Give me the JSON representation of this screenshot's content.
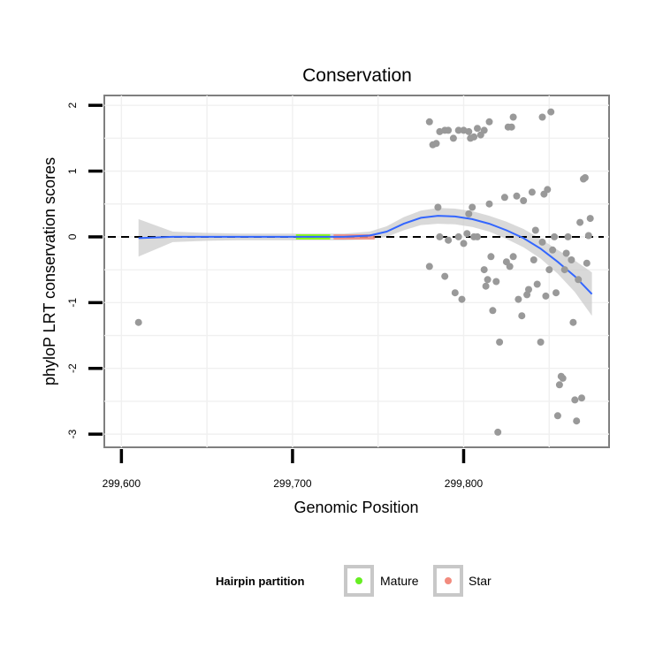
{
  "chart_data": {
    "type": "scatter",
    "title": "Conservation",
    "xlabel": "Genomic Position",
    "ylabel": "phyloP LRT conservation scores",
    "xlim": [
      299590,
      299885
    ],
    "ylim": [
      -3.2,
      2.15
    ],
    "x_ticks": [
      299600,
      299700,
      299800
    ],
    "x_tick_labels": [
      "299,600",
      "299,700",
      "299,800"
    ],
    "y_ticks": [
      2,
      1,
      0,
      -1,
      -2,
      -3
    ],
    "y_tick_labels": [
      "2",
      "1",
      "0",
      "-1",
      "-2",
      "-3"
    ],
    "grid": true,
    "reference_line": {
      "y": 0,
      "style": "dashed"
    },
    "points": [
      {
        "x": 299610,
        "y": -1.3
      },
      {
        "x": 299780,
        "y": 1.75
      },
      {
        "x": 299782,
        "y": 1.4
      },
      {
        "x": 299784,
        "y": 1.42
      },
      {
        "x": 299786,
        "y": 1.6
      },
      {
        "x": 299789,
        "y": 1.62
      },
      {
        "x": 299791,
        "y": 1.62
      },
      {
        "x": 299794,
        "y": 1.5
      },
      {
        "x": 299797,
        "y": 1.62
      },
      {
        "x": 299800,
        "y": 1.62
      },
      {
        "x": 299803,
        "y": 1.6
      },
      {
        "x": 299804,
        "y": 1.5
      },
      {
        "x": 299806,
        "y": 1.52
      },
      {
        "x": 299808,
        "y": 1.65
      },
      {
        "x": 299810,
        "y": 1.55
      },
      {
        "x": 299812,
        "y": 1.62
      },
      {
        "x": 299815,
        "y": 1.75
      },
      {
        "x": 299826,
        "y": 1.67
      },
      {
        "x": 299828,
        "y": 1.67
      },
      {
        "x": 299829,
        "y": 1.82
      },
      {
        "x": 299846,
        "y": 1.82
      },
      {
        "x": 299851,
        "y": 1.9
      },
      {
        "x": 299780,
        "y": -0.45
      },
      {
        "x": 299785,
        "y": 0.45
      },
      {
        "x": 299786,
        "y": 0.0
      },
      {
        "x": 299789,
        "y": -0.6
      },
      {
        "x": 299791,
        "y": -0.05
      },
      {
        "x": 299795,
        "y": -0.85
      },
      {
        "x": 299797,
        "y": 0.0
      },
      {
        "x": 299799,
        "y": -0.95
      },
      {
        "x": 299800,
        "y": -0.1
      },
      {
        "x": 299802,
        "y": 0.05
      },
      {
        "x": 299803,
        "y": 0.35
      },
      {
        "x": 299805,
        "y": 0.45
      },
      {
        "x": 299806,
        "y": 0.0
      },
      {
        "x": 299808,
        "y": 0.0
      },
      {
        "x": 299812,
        "y": -0.5
      },
      {
        "x": 299813,
        "y": -0.75
      },
      {
        "x": 299814,
        "y": -0.65
      },
      {
        "x": 299815,
        "y": 0.5
      },
      {
        "x": 299816,
        "y": -0.3
      },
      {
        "x": 299817,
        "y": -1.12
      },
      {
        "x": 299819,
        "y": -0.68
      },
      {
        "x": 299820,
        "y": -2.97
      },
      {
        "x": 299821,
        "y": -1.6
      },
      {
        "x": 299824,
        "y": 0.6
      },
      {
        "x": 299825,
        "y": -0.38
      },
      {
        "x": 299827,
        "y": -0.45
      },
      {
        "x": 299829,
        "y": -0.3
      },
      {
        "x": 299831,
        "y": 0.62
      },
      {
        "x": 299832,
        "y": -0.95
      },
      {
        "x": 299834,
        "y": -1.2
      },
      {
        "x": 299835,
        "y": 0.55
      },
      {
        "x": 299837,
        "y": -0.88
      },
      {
        "x": 299838,
        "y": -0.8
      },
      {
        "x": 299840,
        "y": 0.68
      },
      {
        "x": 299841,
        "y": -0.35
      },
      {
        "x": 299842,
        "y": 0.1
      },
      {
        "x": 299843,
        "y": -0.72
      },
      {
        "x": 299845,
        "y": -1.6
      },
      {
        "x": 299846,
        "y": -0.08
      },
      {
        "x": 299847,
        "y": 0.65
      },
      {
        "x": 299848,
        "y": -0.9
      },
      {
        "x": 299849,
        "y": 0.72
      },
      {
        "x": 299850,
        "y": -0.5
      },
      {
        "x": 299852,
        "y": -0.2
      },
      {
        "x": 299853,
        "y": 0.0
      },
      {
        "x": 299854,
        "y": -0.85
      },
      {
        "x": 299855,
        "y": -2.72
      },
      {
        "x": 299856,
        "y": -2.25
      },
      {
        "x": 299857,
        "y": -2.12
      },
      {
        "x": 299858,
        "y": -2.15
      },
      {
        "x": 299859,
        "y": -0.5
      },
      {
        "x": 299860,
        "y": -0.25
      },
      {
        "x": 299861,
        "y": 0.0
      },
      {
        "x": 299863,
        "y": -0.35
      },
      {
        "x": 299864,
        "y": -1.3
      },
      {
        "x": 299865,
        "y": -2.48
      },
      {
        "x": 299866,
        "y": -2.8
      },
      {
        "x": 299867,
        "y": -0.65
      },
      {
        "x": 299868,
        "y": 0.22
      },
      {
        "x": 299869,
        "y": -2.45
      },
      {
        "x": 299870,
        "y": 0.88
      },
      {
        "x": 299871,
        "y": 0.9
      },
      {
        "x": 299872,
        "y": -0.4
      },
      {
        "x": 299873,
        "y": 0.02
      },
      {
        "x": 299874,
        "y": 0.28
      }
    ],
    "smooth": {
      "x": [
        299610,
        299630,
        299650,
        299670,
        299690,
        299710,
        299730,
        299745,
        299755,
        299765,
        299775,
        299785,
        299795,
        299805,
        299815,
        299825,
        299835,
        299845,
        299855,
        299865,
        299875
      ],
      "y": [
        -0.02,
        0.0,
        0.0,
        0.0,
        0.0,
        0.0,
        0.0,
        0.02,
        0.08,
        0.2,
        0.29,
        0.32,
        0.31,
        0.27,
        0.2,
        0.1,
        -0.02,
        -0.18,
        -0.38,
        -0.6,
        -0.87
      ],
      "lower": [
        -0.3,
        -0.08,
        -0.06,
        -0.05,
        -0.05,
        -0.05,
        -0.05,
        -0.04,
        0.0,
        0.1,
        0.18,
        0.2,
        0.19,
        0.15,
        0.08,
        -0.03,
        -0.16,
        -0.33,
        -0.56,
        -0.84,
        -1.2
      ],
      "upper": [
        0.27,
        0.08,
        0.06,
        0.05,
        0.05,
        0.05,
        0.05,
        0.08,
        0.16,
        0.3,
        0.4,
        0.44,
        0.43,
        0.39,
        0.32,
        0.23,
        0.12,
        -0.03,
        -0.2,
        -0.36,
        -0.54
      ],
      "color": "#3366ff"
    },
    "segments": [
      {
        "name": "Mature",
        "from": 299702,
        "to": 299722,
        "color": "#7fff00"
      },
      {
        "name": "Star",
        "from": 299724,
        "to": 299748,
        "color": "#f28b7e"
      }
    ],
    "legend": {
      "title": "Hairpin partition",
      "placement": "bottom",
      "entries": [
        {
          "label": "Mature",
          "color": "#66ee22"
        },
        {
          "label": "Star",
          "color": "#f28b7e"
        }
      ]
    },
    "point_color": "#999999",
    "band_color": "#cccccc"
  }
}
